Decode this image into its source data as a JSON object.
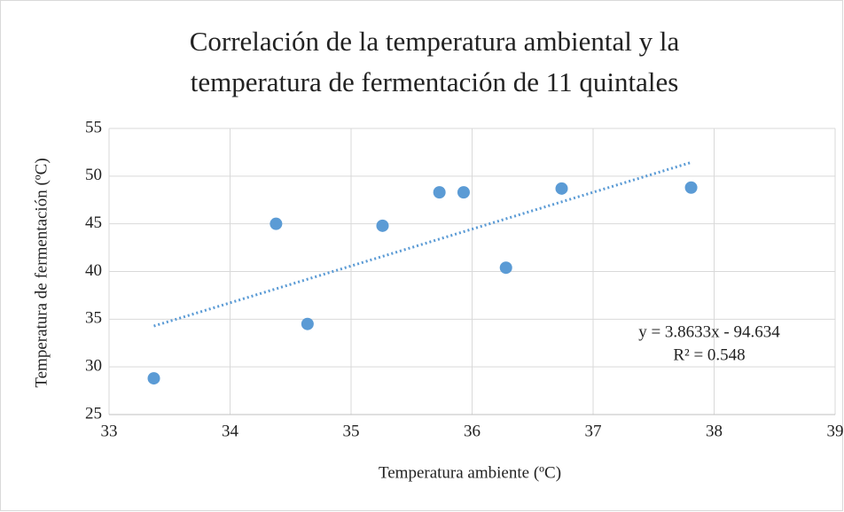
{
  "chart_data": {
    "type": "scatter",
    "title": [
      "Correlación de la temperatura ambiental y la",
      "temperatura de fermentación de 11 quintales"
    ],
    "x_label": "Temperatura ambiente (ºC)",
    "y_label": "Temperatura de fermentación (ºC)",
    "x": [
      33.37,
      34.38,
      34.64,
      35.26,
      35.73,
      35.93,
      36.28,
      36.74,
      37.81
    ],
    "values": [
      28.8,
      45.0,
      34.5,
      44.8,
      48.3,
      48.3,
      40.4,
      48.7,
      48.8
    ],
    "color": "#5b9bd5",
    "xlim": [
      33,
      39
    ],
    "xticks": [
      33,
      34,
      35,
      36,
      37,
      38,
      39
    ],
    "ylim": [
      25,
      55
    ],
    "yticks": [
      25,
      30,
      35,
      40,
      45,
      50,
      55
    ],
    "grid": true,
    "trendline": {
      "slope": 3.8633,
      "intercept": -94.634,
      "equation": "y = 3.8633x - 94.634",
      "r2": "R² = 0.548"
    }
  }
}
